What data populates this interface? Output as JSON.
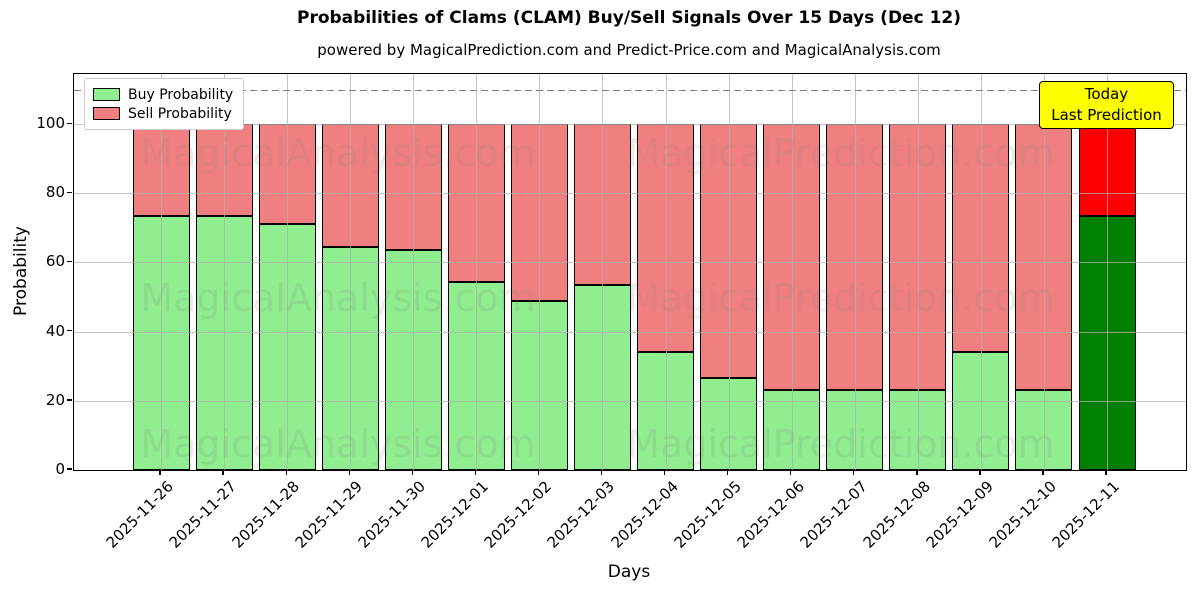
{
  "figure": {
    "title": "Probabilities of Clams (CLAM) Buy/Sell Signals Over 15 Days (Dec 12)",
    "subtitle": "powered by MagicalPrediction.com and Predict-Price.com and MagicalAnalysis.com"
  },
  "legend": {
    "buy_label": "Buy Probability",
    "sell_label": "Sell Probability"
  },
  "annotation": {
    "line1": "Today",
    "line2": "Last Prediction",
    "bg_color": "#ffff00"
  },
  "watermarks": {
    "left_text": "MagicalAnalysis.com",
    "right_text": "MagicalPrediction.com"
  },
  "chart_data": {
    "type": "bar",
    "stacked": true,
    "title": "Probabilities of Clams (CLAM) Buy/Sell Signals Over 15 Days (Dec 12)",
    "xlabel": "Days",
    "ylabel": "Probability",
    "categories": [
      "2025-11-26",
      "2025-11-27",
      "2025-11-28",
      "2025-11-29",
      "2025-11-30",
      "2025-12-01",
      "2025-12-02",
      "2025-12-03",
      "2025-12-04",
      "2025-12-05",
      "2025-12-06",
      "2025-12-07",
      "2025-12-08",
      "2025-12-09",
      "2025-12-10",
      "2025-12-11"
    ],
    "series": [
      {
        "name": "Buy Probability",
        "color": "#90ee90",
        "values": [
          73.5,
          73.5,
          71,
          64.5,
          63.5,
          54.5,
          49,
          53.5,
          34,
          26.5,
          23,
          23,
          23,
          34,
          23,
          73.5
        ]
      },
      {
        "name": "Sell Probability",
        "color": "#f08080",
        "values": [
          26.5,
          26.5,
          29,
          35.5,
          36.5,
          45.5,
          51,
          46.5,
          66,
          73.5,
          77,
          77,
          77,
          66,
          77,
          26.5
        ]
      }
    ],
    "today_index": 15,
    "today_colors": {
      "buy": "#008000",
      "sell": "#ff0000"
    },
    "yticks": [
      0,
      20,
      40,
      60,
      80,
      100
    ],
    "ylim": [
      0,
      114.5
    ],
    "dashed_line_y": 110,
    "grid": true,
    "legend_position": "upper left"
  }
}
